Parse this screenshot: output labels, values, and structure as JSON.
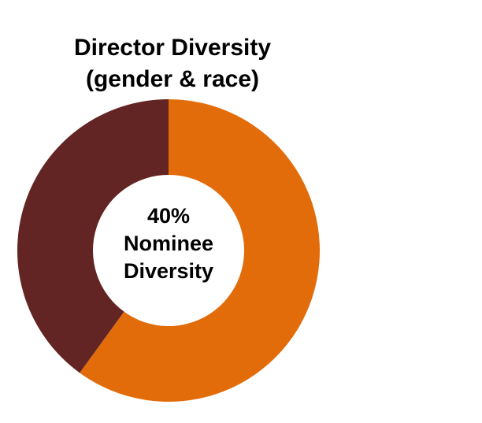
{
  "chart_data": {
    "type": "donut",
    "title": [
      "Director Diversity",
      "(gender & race)"
    ],
    "values": [
      60,
      40
    ],
    "value_labels": [
      null,
      "40%"
    ],
    "colors": [
      "#e36c0a",
      "#632523"
    ],
    "center_label": [
      "Nominee",
      "Diversity"
    ]
  }
}
